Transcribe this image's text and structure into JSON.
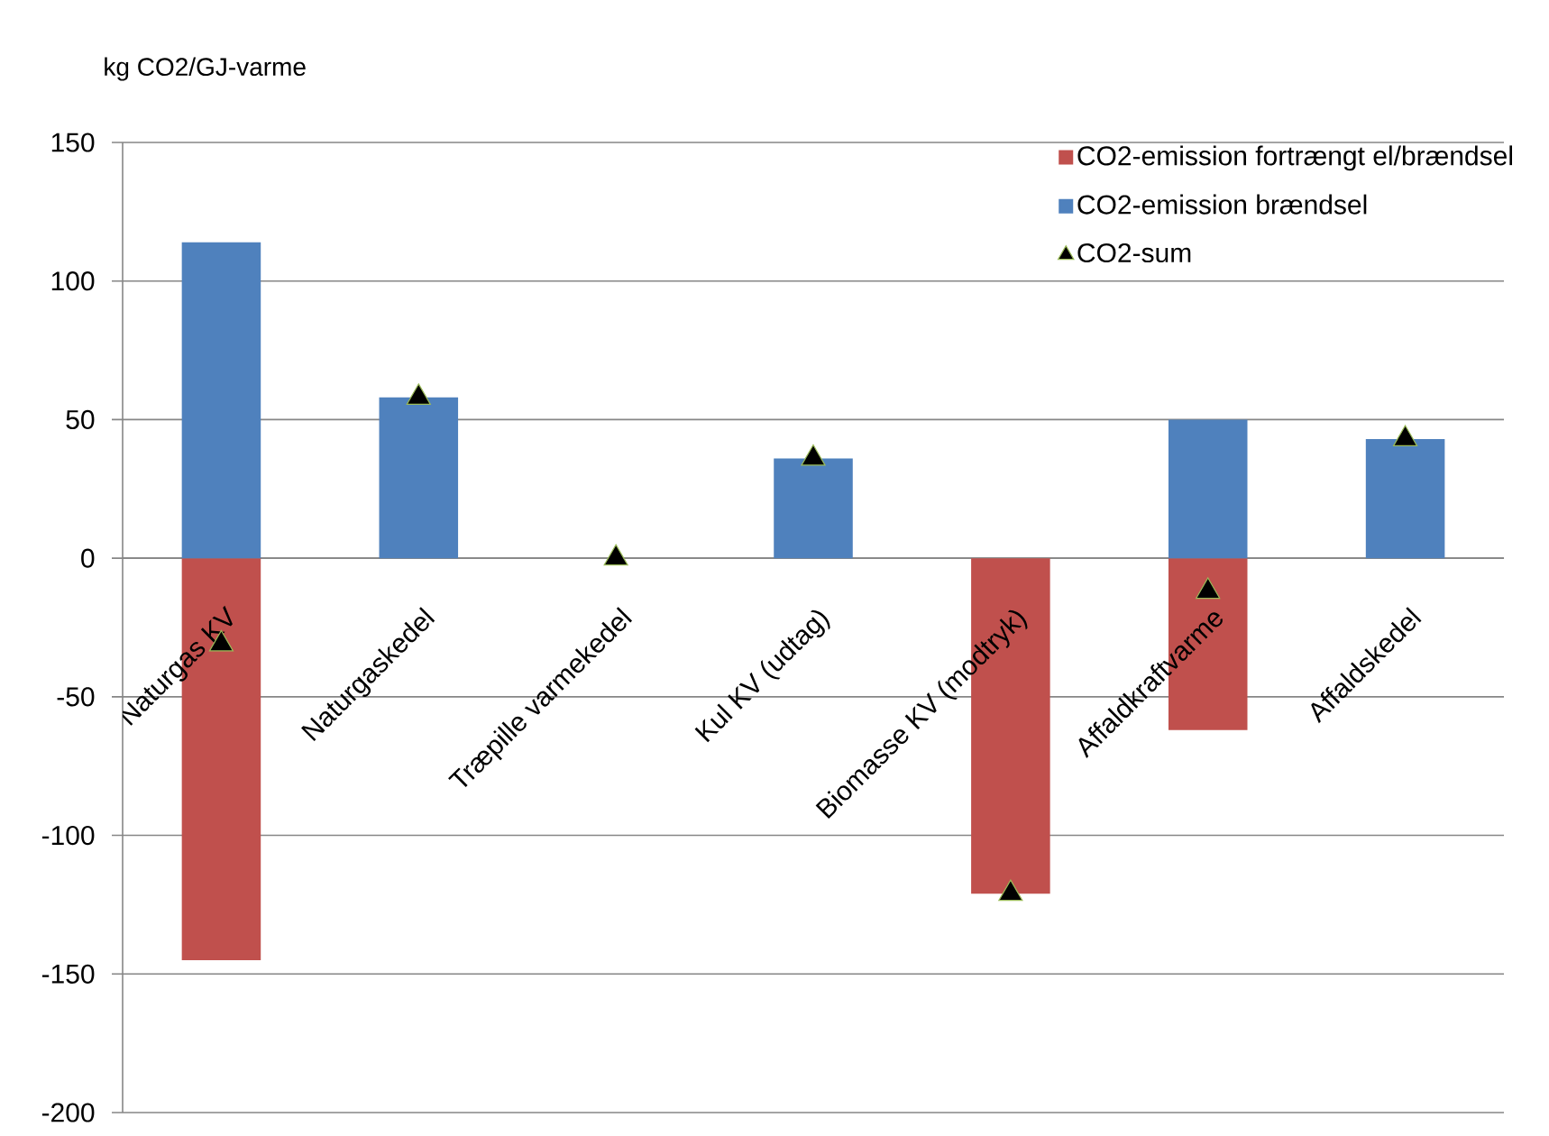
{
  "chart_data": {
    "type": "bar",
    "stacked": true,
    "ylabel": "kg CO2/GJ-varme",
    "categories": [
      "Naturgas KV",
      "Naturgaskedel",
      "Træpille varmekedel",
      "Kul KV (udtag)",
      "Biomasse KV (modtryk)",
      "Affaldkraftvarme",
      "Affaldskedel"
    ],
    "series": [
      {
        "name": "CO2-emission fortrængt el/brændsel",
        "color": "#c0504d",
        "values": [
          -145,
          0,
          0,
          0,
          -121,
          -62,
          0
        ]
      },
      {
        "name": "CO2-emission brændsel",
        "color": "#4f81bd",
        "values": [
          114,
          58,
          0,
          36,
          0,
          50,
          43
        ]
      },
      {
        "name": "CO2-sum",
        "type": "scatter",
        "marker": "triangle",
        "color": "#000000",
        "x": [
          "Naturgas KV",
          "Naturgaskedel",
          "Træpille varmekedel",
          "Kul KV (udtag)",
          "Biomasse KV (modtryk)",
          "Affaldkraftvarme",
          "Affaldskedel"
        ],
        "values": [
          -31,
          58,
          0,
          36,
          -121,
          -12,
          43
        ]
      }
    ],
    "ylim": [
      -200,
      150
    ],
    "yticks": [
      -200,
      -150,
      -100,
      -50,
      0,
      50,
      100,
      150
    ],
    "grid": "y",
    "legend": "top right"
  }
}
